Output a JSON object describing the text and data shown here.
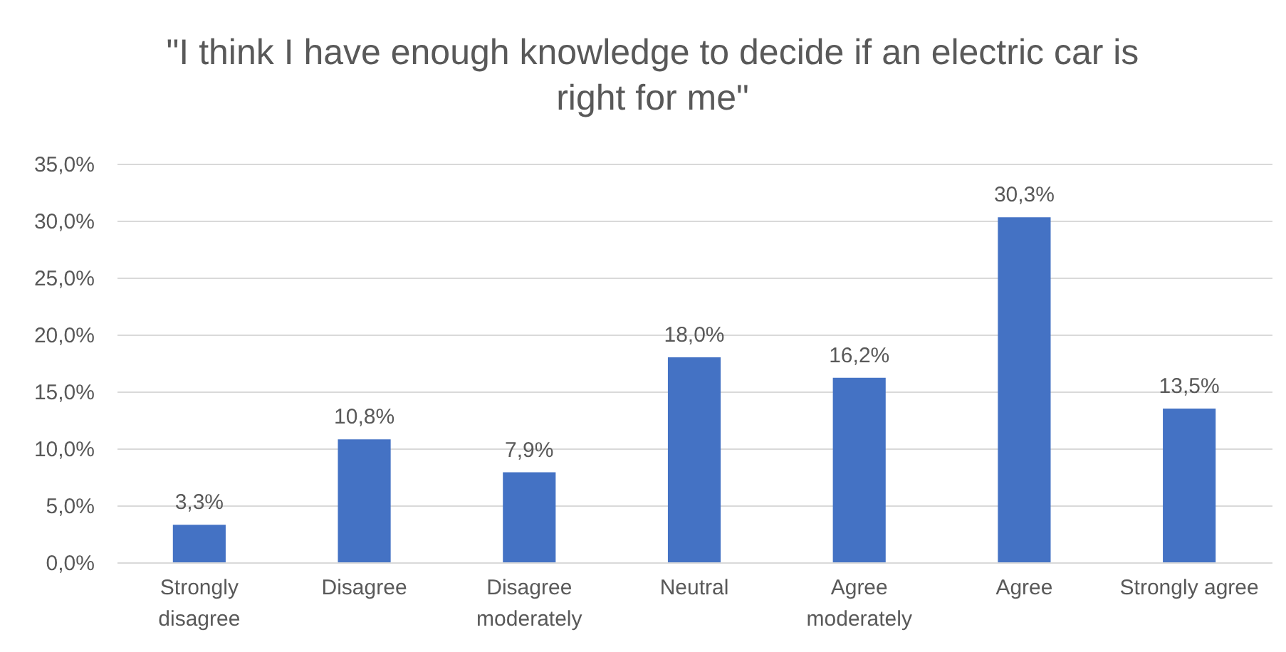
{
  "chart_data": {
    "type": "bar",
    "title": "\"I think I have enough knowledge to decide if an electric car is right for me\"",
    "categories": [
      "Strongly disagree",
      "Disagree",
      "Disagree moderately",
      "Neutral",
      "Agree moderately",
      "Agree",
      "Strongly agree"
    ],
    "values": [
      3.3,
      10.8,
      7.9,
      18.0,
      16.2,
      30.3,
      13.5
    ],
    "value_labels": [
      "3,3%",
      "10,8%",
      "7,9%",
      "18,0%",
      "16,2%",
      "30,3%",
      "13,5%"
    ],
    "color": "#4472c4",
    "ylim": [
      0,
      35
    ],
    "yticks": [
      {
        "value": 0,
        "label": "0,0%"
      },
      {
        "value": 5,
        "label": "5,0%"
      },
      {
        "value": 10,
        "label": "10,0%"
      },
      {
        "value": 15,
        "label": "15,0%"
      },
      {
        "value": 20,
        "label": "20,0%"
      },
      {
        "value": 25,
        "label": "25,0%"
      },
      {
        "value": 30,
        "label": "30,0%"
      },
      {
        "value": 35,
        "label": "35,0%"
      }
    ],
    "grid": "y"
  }
}
